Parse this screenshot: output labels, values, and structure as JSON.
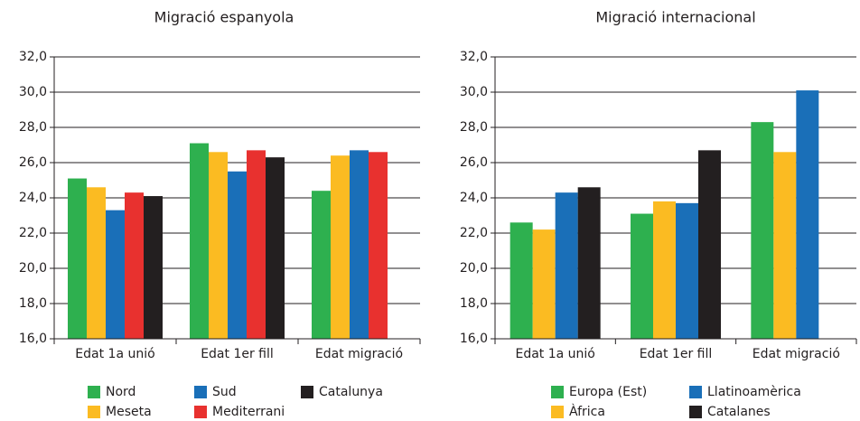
{
  "chart_data": [
    {
      "type": "bar",
      "title": "Migració espanyola",
      "categories": [
        "Edat 1a unió",
        "Edat 1er fill",
        "Edat migració"
      ],
      "series": [
        {
          "name": "Nord",
          "color": "#2eb04f",
          "values": [
            25.1,
            27.1,
            24.4
          ]
        },
        {
          "name": "Meseta",
          "color": "#fbbb22",
          "values": [
            24.6,
            26.6,
            26.4
          ]
        },
        {
          "name": "Sud",
          "color": "#1a6fb8",
          "values": [
            23.3,
            25.5,
            26.7
          ]
        },
        {
          "name": "Mediterrani",
          "color": "#e8312f",
          "values": [
            24.3,
            26.7,
            26.6
          ]
        },
        {
          "name": "Catalunya",
          "color": "#231f20",
          "values": [
            24.1,
            26.3,
            null
          ]
        }
      ],
      "ylim": [
        16,
        32
      ],
      "yticks": [
        {
          "value": 16,
          "label": "16,0"
        },
        {
          "value": 18,
          "label": "18,0"
        },
        {
          "value": 20,
          "label": "20,0"
        },
        {
          "value": 22,
          "label": "22,0"
        },
        {
          "value": 24,
          "label": "24,0"
        },
        {
          "value": 26,
          "label": "26,0"
        },
        {
          "value": 28,
          "label": "28,0"
        },
        {
          "value": 30,
          "label": "30,0"
        },
        {
          "value": 32,
          "label": "32,0"
        }
      ],
      "grid": true
    },
    {
      "type": "bar",
      "title": "Migració internacional",
      "categories": [
        "Edat 1a unió",
        "Edat 1er fill",
        "Edat migració"
      ],
      "series": [
        {
          "name": "Europa (Est)",
          "color": "#2eb04f",
          "values": [
            22.6,
            23.1,
            28.3
          ]
        },
        {
          "name": "Àfrica",
          "color": "#fbbb22",
          "values": [
            22.2,
            23.8,
            26.6
          ]
        },
        {
          "name": "Llatinoamèrica",
          "color": "#1a6fb8",
          "values": [
            24.3,
            23.7,
            30.1
          ]
        },
        {
          "name": "Catalanes",
          "color": "#231f20",
          "values": [
            24.6,
            26.7,
            null
          ]
        }
      ],
      "ylim": [
        16,
        32
      ],
      "yticks": [
        {
          "value": 16,
          "label": "16,0"
        },
        {
          "value": 18,
          "label": "18,0"
        },
        {
          "value": 20,
          "label": "20,0"
        },
        {
          "value": 22,
          "label": "22,0"
        },
        {
          "value": 24,
          "label": "24,0"
        },
        {
          "value": 26,
          "label": "26,0"
        },
        {
          "value": 28,
          "label": "28,0"
        },
        {
          "value": 30,
          "label": "30,0"
        },
        {
          "value": 32,
          "label": "32,0"
        }
      ],
      "grid": true
    }
  ]
}
